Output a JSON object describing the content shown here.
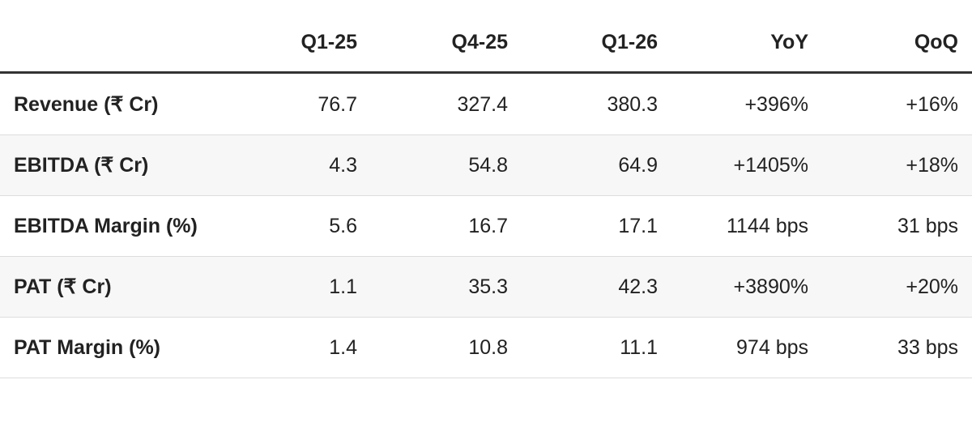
{
  "table": {
    "columns": [
      "Q1-25",
      "Q4-25",
      "Q1-26",
      "YoY",
      "QoQ"
    ],
    "rows": [
      [
        "Revenue (₹ Cr)",
        "76.7",
        "327.4",
        "380.3",
        "+396%",
        "+16%"
      ],
      [
        "EBITDA (₹ Cr)",
        "4.3",
        "54.8",
        "64.9",
        "+1405%",
        "+18%"
      ],
      [
        "EBITDA Margin (%)",
        "5.6",
        "16.7",
        "17.1",
        "1144 bps",
        "31 bps"
      ],
      [
        "PAT (₹ Cr)",
        "1.1",
        "35.3",
        "42.3",
        "+3890%",
        "+20%"
      ],
      [
        "PAT Margin (%)",
        "1.4",
        "10.8",
        "11.1",
        "974 bps",
        "33 bps"
      ]
    ]
  }
}
